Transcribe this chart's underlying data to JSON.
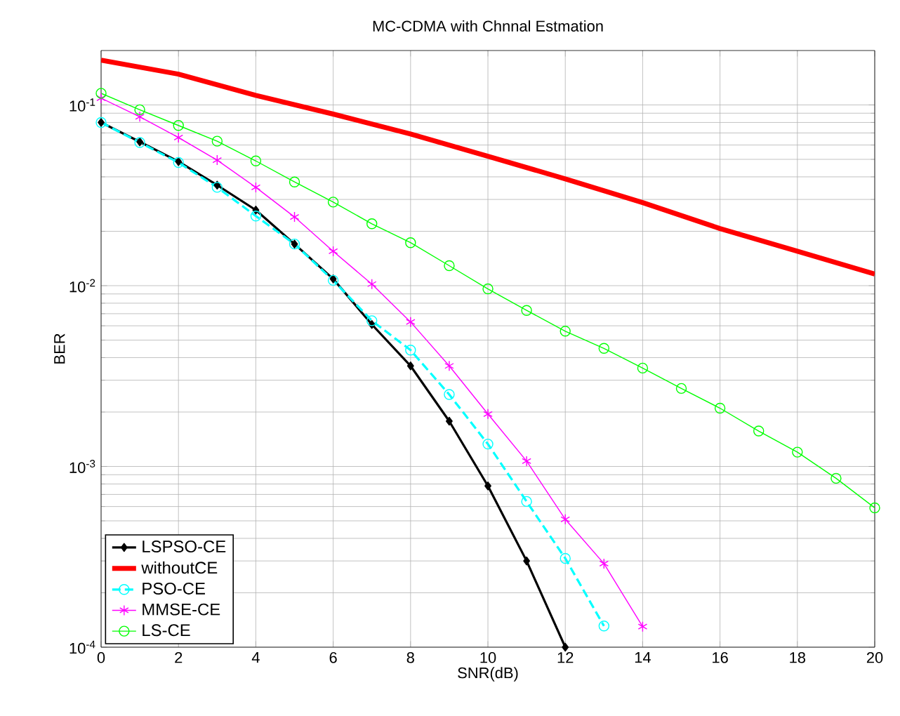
{
  "chart_data": {
    "type": "line",
    "title": "MC-CDMA with Chnnal Estmation",
    "xlabel": "SNR(dB)",
    "ylabel": "BER",
    "log": "y",
    "xlim": [
      0,
      20
    ],
    "xticks": [
      0,
      2,
      4,
      6,
      8,
      10,
      12,
      14,
      16,
      18,
      20
    ],
    "ylim": [
      0.0001,
      0.2
    ],
    "yticks": [
      {
        "value": 0.0001,
        "label": "10$^{-4}$"
      },
      {
        "value": 0.001,
        "label": "10$^{-3}$"
      },
      {
        "value": 0.01,
        "label": "10$^{-2}$"
      },
      {
        "value": 0.1,
        "label": "10$^{-1}$"
      }
    ],
    "grid": true,
    "legend": "bottom left",
    "series": [
      {
        "name": "LSPSO-CE",
        "color": "#000000",
        "marker": "diamond",
        "line_style": "solid",
        "x": [
          0,
          1,
          2,
          3,
          4,
          5,
          6,
          7,
          8,
          9,
          10,
          11,
          12
        ],
        "values": [
          0.08,
          0.0625,
          0.0486,
          0.036,
          0.0262,
          0.017,
          0.0109,
          0.0061,
          0.0036,
          0.00178,
          0.00078,
          0.0003,
          0.0001
        ]
      },
      {
        "name": "withoutCE",
        "color": "#ff0000",
        "marker": "none",
        "line_style": "solid",
        "x": [
          0,
          2,
          4,
          6,
          8,
          10,
          12,
          14,
          16,
          18,
          20
        ],
        "values": [
          0.177,
          0.148,
          0.113,
          0.089,
          0.069,
          0.052,
          0.039,
          0.0288,
          0.0207,
          0.0155,
          0.0116
        ]
      },
      {
        "name": "PSO-CE",
        "color": "#00ffff",
        "marker": "circle",
        "line_style": "dashed",
        "x": [
          0,
          1,
          2,
          3,
          4,
          5,
          6,
          7,
          8,
          9,
          10,
          11,
          12,
          13
        ],
        "values": [
          0.08,
          0.062,
          0.048,
          0.035,
          0.0243,
          0.017,
          0.0107,
          0.0064,
          0.0044,
          0.0025,
          0.00133,
          0.00064,
          0.00031,
          0.000131
        ]
      },
      {
        "name": "MMSE-CE",
        "color": "#ff00ff",
        "marker": "cross",
        "line_style": "solid",
        "x": [
          0,
          1,
          2,
          3,
          4,
          5,
          6,
          7,
          8,
          9,
          10,
          11,
          12,
          13,
          14
        ],
        "values": [
          0.109,
          0.086,
          0.066,
          0.0495,
          0.035,
          0.024,
          0.0155,
          0.0102,
          0.0063,
          0.0036,
          0.00195,
          0.00107,
          0.00051,
          0.00029,
          0.00013
        ]
      },
      {
        "name": "LS-CE",
        "color": "#00ff00",
        "marker": "circle",
        "line_style": "solid",
        "x": [
          0,
          1,
          2,
          3,
          4,
          5,
          6,
          7,
          8,
          9,
          10,
          11,
          12,
          13,
          14,
          15,
          16,
          17,
          18,
          19,
          20
        ],
        "values": [
          0.116,
          0.094,
          0.077,
          0.063,
          0.049,
          0.0375,
          0.029,
          0.022,
          0.0173,
          0.0129,
          0.0096,
          0.0073,
          0.0056,
          0.0045,
          0.0035,
          0.0027,
          0.0021,
          0.00157,
          0.0012,
          0.00086,
          0.00059
        ]
      }
    ]
  }
}
